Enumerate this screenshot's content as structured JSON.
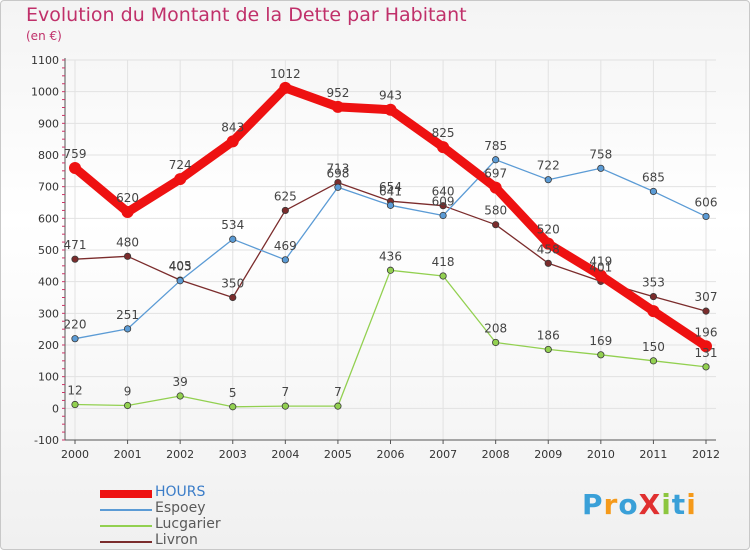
{
  "header": {
    "title": "Evolution du Montant de la Dette par Habitant",
    "unit": "(en €)"
  },
  "logo": {
    "text": "ProXiti",
    "colors": [
      "#3aa0d8",
      "#f59a1a",
      "#3aa0d8",
      "#e03030",
      "#8cc63f",
      "#3aa0d8",
      "#f59a1a"
    ]
  },
  "chart_data": {
    "type": "line",
    "title": "Evolution du Montant de la Dette par Habitant",
    "subtitle": "(en €)",
    "xlabel": "",
    "ylabel": "",
    "x": [
      "2000",
      "2001",
      "2002",
      "2003",
      "2004",
      "2005",
      "2006",
      "2007",
      "2008",
      "2009",
      "2010",
      "2011",
      "2012"
    ],
    "ylim": [
      -100,
      1100
    ],
    "yticks": [
      -100,
      0,
      100,
      200,
      300,
      400,
      500,
      600,
      700,
      800,
      900,
      1000,
      1100
    ],
    "grid": true,
    "legend_position": "bottom-left",
    "series": [
      {
        "name": "HOURS",
        "color": "#ee1111",
        "values": [
          759,
          620,
          724,
          843,
          1012,
          952,
          943,
          825,
          697,
          520,
          419,
          307,
          196
        ],
        "labels": [
          "759",
          "620",
          "724",
          "843",
          "1012",
          "952",
          "943",
          "825",
          "697",
          "520",
          "419",
          "",
          "196"
        ]
      },
      {
        "name": "Espoey",
        "color": "#5b9bd5",
        "values": [
          220,
          251,
          403,
          534,
          469,
          698,
          641,
          609,
          785,
          722,
          758,
          685,
          606
        ],
        "labels": [
          "220",
          "251",
          "403",
          "534",
          "469",
          "698",
          "641",
          "609",
          "785",
          "722",
          "758",
          "685",
          "606"
        ]
      },
      {
        "name": "Lucgarier",
        "color": "#92d050",
        "values": [
          12,
          9,
          39,
          5,
          7,
          7,
          436,
          418,
          208,
          186,
          169,
          150,
          131
        ],
        "labels": [
          "12",
          "9",
          "39",
          "5",
          "7",
          "7",
          "436",
          "418",
          "208",
          "186",
          "169",
          "150",
          "131"
        ]
      },
      {
        "name": "Livron",
        "color": "#7b2c2c",
        "values": [
          471,
          480,
          405,
          350,
          625,
          713,
          654,
          640,
          580,
          458,
          401,
          353,
          307
        ],
        "labels": [
          "471",
          "480",
          "405",
          "350",
          "625",
          "713",
          "654",
          "640",
          "580",
          "458",
          "401",
          "353",
          "307"
        ]
      }
    ]
  }
}
